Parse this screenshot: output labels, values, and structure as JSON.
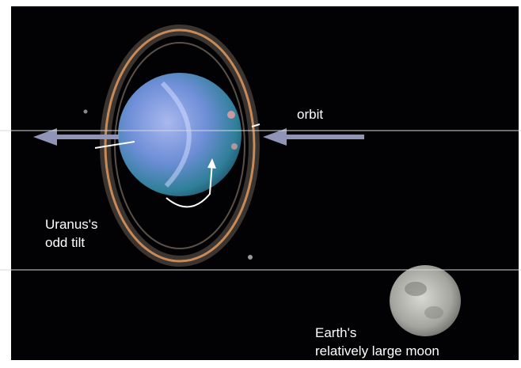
{
  "labels": {
    "orbit": "orbit",
    "uranus": [
      "Uranus's",
      "odd tilt"
    ],
    "moon": [
      "Earth's",
      "relatively large moon"
    ]
  }
}
